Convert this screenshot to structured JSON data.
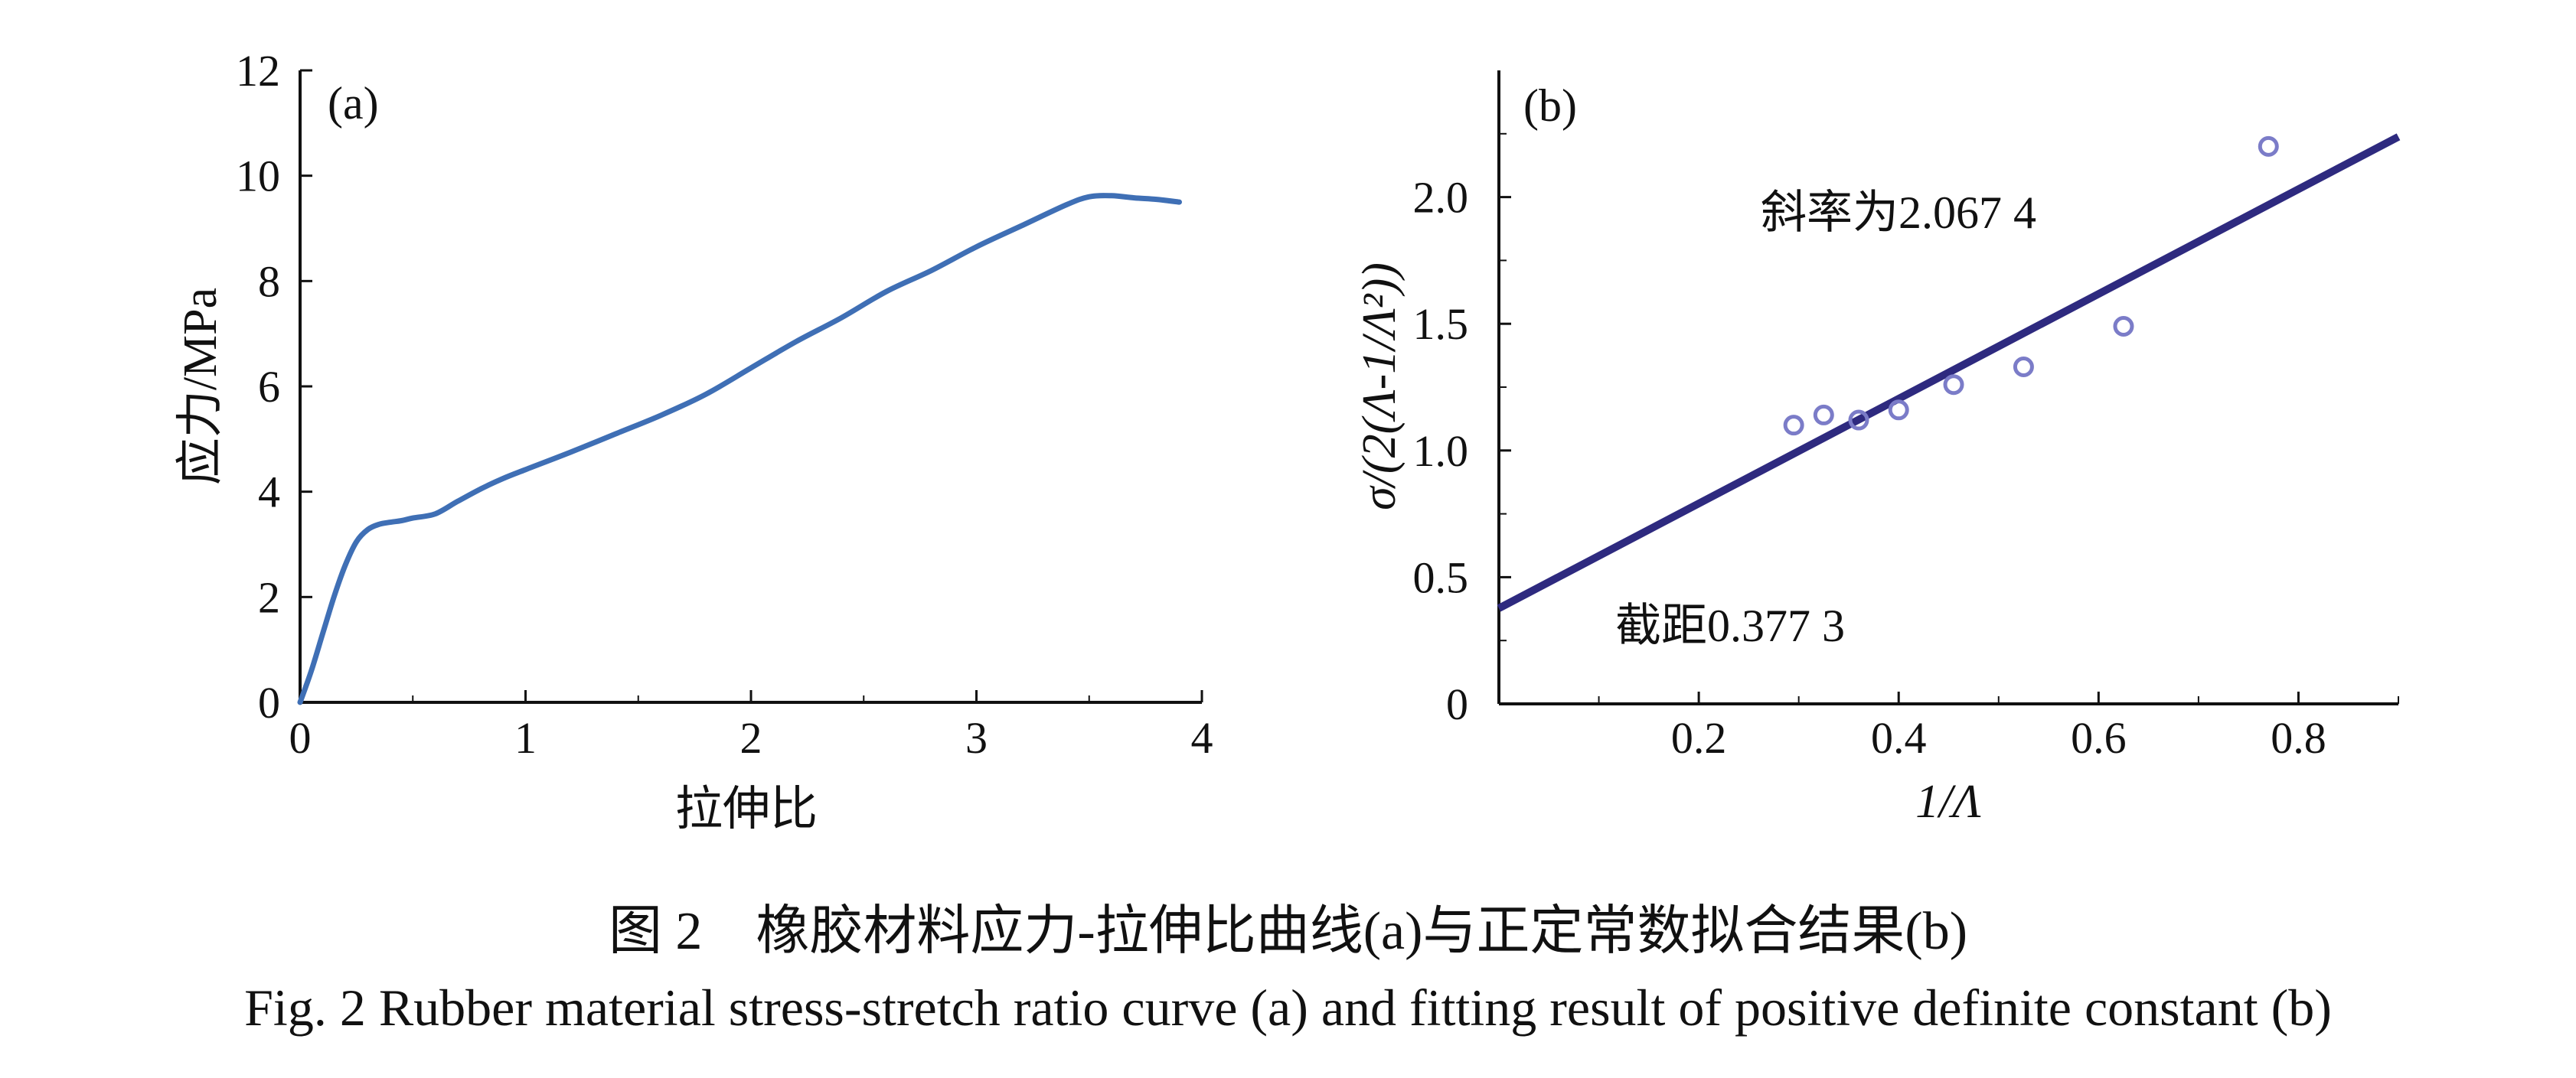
{
  "chart_data": [
    {
      "type": "line",
      "panel_label": "(a)",
      "xlabel": "拉伸比",
      "ylabel": "应力/MPa",
      "xlim": [
        0,
        4
      ],
      "ylim": [
        0,
        12
      ],
      "x_ticks": [
        "0",
        "1",
        "2",
        "3",
        "4"
      ],
      "y_ticks": [
        "0",
        "2",
        "4",
        "6",
        "8",
        "10",
        "12"
      ],
      "line_color": "#3f6fb5",
      "x": [
        0.0,
        0.05,
        0.1,
        0.15,
        0.2,
        0.25,
        0.3,
        0.35,
        0.4,
        0.45,
        0.5,
        0.6,
        0.7,
        0.8,
        0.9,
        1.0,
        1.2,
        1.4,
        1.6,
        1.8,
        2.0,
        2.2,
        2.4,
        2.6,
        2.8,
        3.0,
        3.2,
        3.4,
        3.5,
        3.6,
        3.7,
        3.8,
        3.9
      ],
      "y": [
        0.0,
        0.6,
        1.3,
        2.0,
        2.6,
        3.05,
        3.28,
        3.38,
        3.42,
        3.45,
        3.5,
        3.58,
        3.82,
        4.05,
        4.25,
        4.42,
        4.75,
        5.1,
        5.45,
        5.85,
        6.35,
        6.85,
        7.3,
        7.8,
        8.2,
        8.65,
        9.05,
        9.45,
        9.6,
        9.62,
        9.58,
        9.55,
        9.5
      ]
    },
    {
      "type": "scatter",
      "panel_label": "(b)",
      "xlabel": "1/Λ",
      "ylabel": "σ/(2(Λ-1/Λ²))",
      "xlim": [
        0,
        0.9
      ],
      "ylim": [
        0,
        2.5
      ],
      "x_ticks": [
        "0.2",
        "0.4",
        "0.6",
        "0.8"
      ],
      "y_ticks": [
        "0",
        "0.5",
        "1.0",
        "1.5",
        "2.0"
      ],
      "origin_label": "0",
      "line_color": "#2e2a7f",
      "marker_color": "#7b7cc8",
      "points": [
        {
          "x": 0.295,
          "y": 1.1
        },
        {
          "x": 0.325,
          "y": 1.14
        },
        {
          "x": 0.36,
          "y": 1.12
        },
        {
          "x": 0.4,
          "y": 1.16
        },
        {
          "x": 0.455,
          "y": 1.26
        },
        {
          "x": 0.525,
          "y": 1.33
        },
        {
          "x": 0.625,
          "y": 1.49
        },
        {
          "x": 0.77,
          "y": 2.2
        }
      ],
      "fit": {
        "slope": 2.0674,
        "intercept": 0.3773
      },
      "slope_text": "斜率为2.067 4",
      "intercept_text": "截距0.377 3"
    }
  ],
  "caption_cn": "图 2　橡胶材料应力-拉伸比曲线(a)与正定常数拟合结果(b)",
  "caption_en": "Fig. 2  Rubber material stress-stretch ratio curve (a) and fitting result of positive definite constant (b)"
}
